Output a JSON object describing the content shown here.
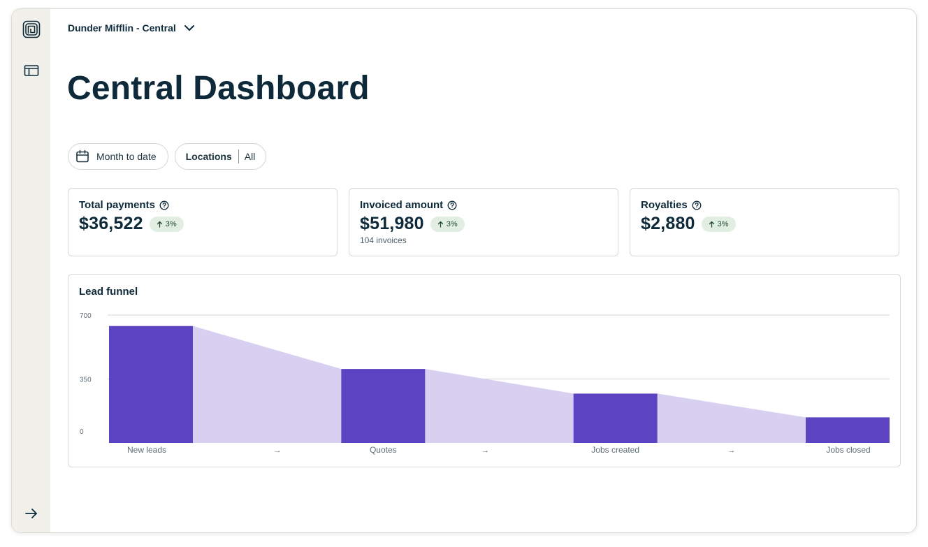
{
  "header": {
    "org_name": "Dunder Mifflin - Central",
    "page_title": "Central Dashboard"
  },
  "rail": {
    "logo_icon": "brand-logo-icon",
    "panel_icon": "sidebar-panel-icon",
    "expand_icon": "arrow-right-icon"
  },
  "filters": {
    "date_range": "Month to date",
    "locations_label": "Locations",
    "locations_value": "All"
  },
  "metrics": [
    {
      "title": "Total payments",
      "value": "$36,522",
      "change": "3%",
      "sub": ""
    },
    {
      "title": "Invoiced amount",
      "value": "$51,980",
      "change": "3%",
      "sub": "104 invoices"
    },
    {
      "title": "Royalties",
      "value": "$2,880",
      "change": "3%",
      "sub": ""
    }
  ],
  "colors": {
    "bar": "#5c43c1",
    "flow": "#d8d0f0",
    "badge_bg": "#e1eee1",
    "text": "#0e2a3a"
  },
  "chart_data": {
    "type": "bar",
    "title": "Lead funnel",
    "categories": [
      "New leads",
      "Quotes",
      "Jobs created",
      "Jobs closed"
    ],
    "values": [
      640,
      405,
      270,
      140
    ],
    "connector_label": "→",
    "yticks": [
      0,
      350,
      700
    ],
    "ylim": [
      0,
      700
    ],
    "grid": true,
    "legend": "none"
  }
}
